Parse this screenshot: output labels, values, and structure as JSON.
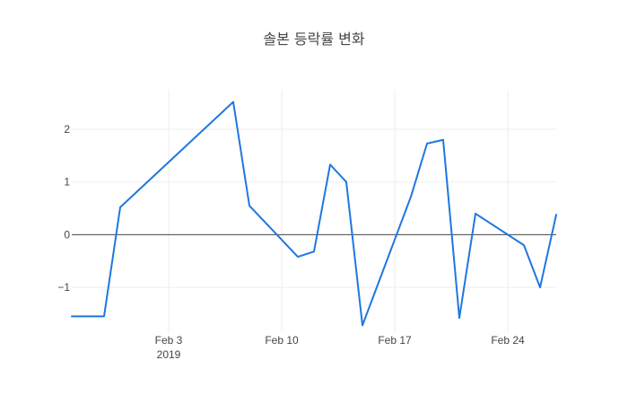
{
  "chart_data": {
    "type": "line",
    "title": "솔본 등락률 변화",
    "xlabel": "",
    "ylabel": "",
    "x": [
      "2019-01-28",
      "2019-01-29",
      "2019-01-30",
      "2019-01-31",
      "2019-02-07",
      "2019-02-08",
      "2019-02-11",
      "2019-02-12",
      "2019-02-13",
      "2019-02-14",
      "2019-02-15",
      "2019-02-18",
      "2019-02-19",
      "2019-02-20",
      "2019-02-21",
      "2019-02-22",
      "2019-02-25",
      "2019-02-26",
      "2019-02-27"
    ],
    "series": [
      {
        "values": [
          -1.55,
          -1.55,
          -1.55,
          0.52,
          2.52,
          0.55,
          -0.42,
          -0.32,
          1.33,
          1.0,
          -1.72,
          0.72,
          1.73,
          1.8,
          -1.58,
          0.4,
          -0.2,
          -1.0,
          0.38
        ],
        "color": "#1f77e0"
      }
    ],
    "x_ticks": [
      "Feb 3",
      "Feb 10",
      "Feb 17",
      "Feb 24"
    ],
    "x_tick_sub": "2019",
    "y_ticks": [
      "−1",
      "0",
      "1",
      "2"
    ],
    "y_tick_values": [
      -1,
      0,
      1,
      2
    ],
    "x_tick_dates": [
      "2019-02-03",
      "2019-02-10",
      "2019-02-17",
      "2019-02-24"
    ],
    "xlim": [
      "2019-01-28",
      "2019-02-27"
    ],
    "ylim": [
      -1.85,
      2.75
    ],
    "grid": true,
    "zero_line": true
  }
}
